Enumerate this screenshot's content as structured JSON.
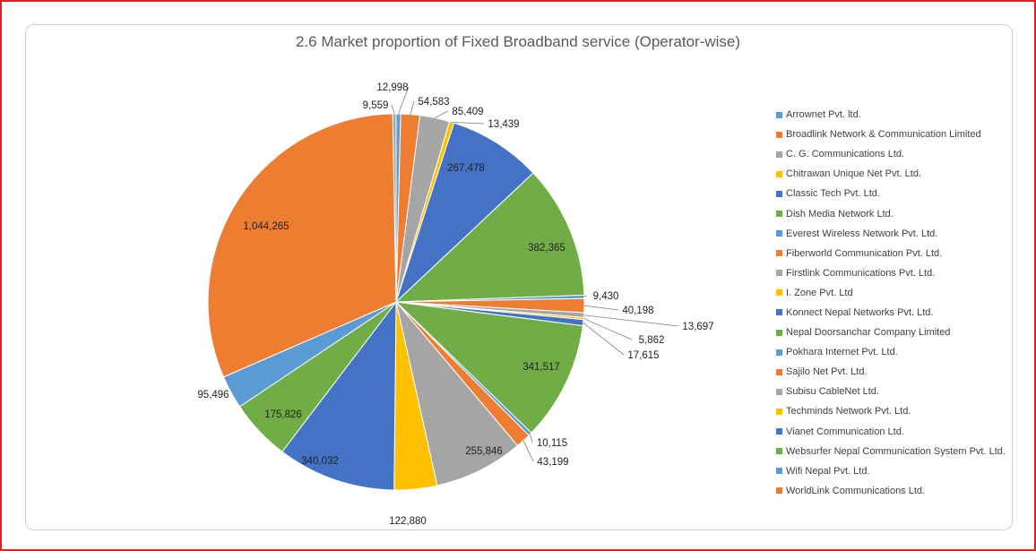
{
  "chart_data": {
    "type": "pie",
    "title": "2.6 Market proportion of Fixed Broadband service (Operator-wise)",
    "start_angle_deg": 0,
    "direction": "clockwise",
    "legend_position": "right",
    "slices": [
      {
        "name": "Arrownet Pvt. ltd.",
        "value": 12998,
        "label": "12,998",
        "color": "#5B9BD5"
      },
      {
        "name": "Broadlink Network & Communication Limited",
        "value": 54583,
        "label": "54,583",
        "color": "#ED7D31"
      },
      {
        "name": "C. G. Communications Ltd.",
        "value": 85409,
        "label": "85,409",
        "color": "#A5A5A5"
      },
      {
        "name": "Chitrawan Unique Net Pvt. Ltd.",
        "value": 13439,
        "label": "13,439",
        "color": "#FFC000"
      },
      {
        "name": "Classic Tech Pvt. Ltd.",
        "value": 267478,
        "label": "267,478",
        "color": "#4472C4"
      },
      {
        "name": "Dish Media Network Ltd.",
        "value": 382365,
        "label": "382,365",
        "color": "#70AD47"
      },
      {
        "name": "Everest Wireless Network Pvt. Ltd.",
        "value": 9430,
        "label": "9,430",
        "color": "#5B9BD5"
      },
      {
        "name": "Fiberworld Communication Pvt. Ltd.",
        "value": 40198,
        "label": "40,198",
        "color": "#ED7D31"
      },
      {
        "name": "Firstlink Communications Pvt. Ltd.",
        "value": 13697,
        "label": "13,697",
        "color": "#A5A5A5"
      },
      {
        "name": "I. Zone Pvt. Ltd",
        "value": 5862,
        "label": "5,862",
        "color": "#FFC000"
      },
      {
        "name": "Konnect Nepal Networks Pvt. Ltd.",
        "value": 17615,
        "label": "17,615",
        "color": "#4472C4"
      },
      {
        "name": "Nepal Doorsanchar Company Limited",
        "value": 341517,
        "label": "341,517",
        "color": "#70AD47"
      },
      {
        "name": "Pokhara Internet Pvt. Ltd.",
        "value": 10115,
        "label": "10,115",
        "color": "#5B9BD5"
      },
      {
        "name": "Sajilo Net Pvt. Ltd.",
        "value": 43199,
        "label": "43,199",
        "color": "#ED7D31"
      },
      {
        "name": "Subisu CableNet Ltd.",
        "value": 255846,
        "label": "255,846",
        "color": "#A5A5A5"
      },
      {
        "name": "Techminds Network Pvt. Ltd.",
        "value": 122880,
        "label": "122,880",
        "color": "#FFC000"
      },
      {
        "name": "Vianet Communication Ltd.",
        "value": 340032,
        "label": "340,032",
        "color": "#4472C4"
      },
      {
        "name": "Websurfer Nepal Communication System Pvt. Ltd.",
        "value": 175826,
        "label": "175,826",
        "color": "#70AD47"
      },
      {
        "name": "Wifi Nepal Pvt. Ltd.",
        "value": 95496,
        "label": "95,496",
        "color": "#5B9BD5"
      },
      {
        "name": "WorldLink Communications Ltd.",
        "value": 1044265,
        "label": "1,044,265",
        "color": "#ED7D31"
      },
      {
        "name": "",
        "value": 9559,
        "label": "9,559",
        "color": "#A5A5A5"
      }
    ]
  }
}
